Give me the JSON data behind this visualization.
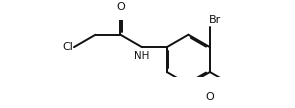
{
  "bg_color": "#ffffff",
  "line_color": "#111111",
  "line_width": 1.4,
  "label_Br": "Br",
  "label_O": "O",
  "label_Cl": "Cl",
  "label_NH": "NH",
  "label_OMe": "O",
  "font_size": 8.0
}
